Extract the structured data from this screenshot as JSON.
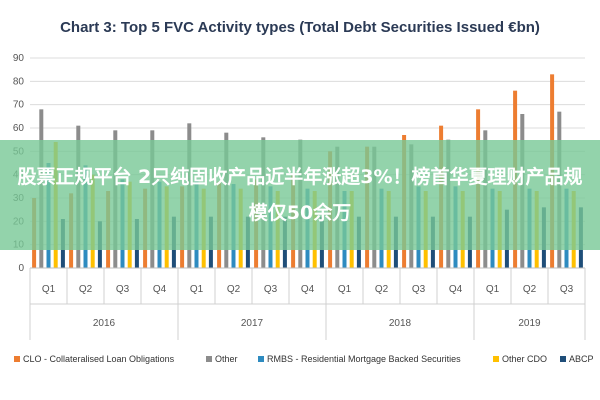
{
  "chart_data": {
    "type": "bar",
    "title": "Chart 3: Top 5 FVC Activity types (Total Debt Securities Issued €bn)",
    "ylim": [
      0,
      90
    ],
    "yticks": [
      0,
      10,
      20,
      30,
      40,
      50,
      60,
      70,
      80,
      90
    ],
    "grid": true,
    "legend_position": "bottom",
    "categories": [
      "Q1",
      "Q2",
      "Q3",
      "Q4",
      "Q1",
      "Q2",
      "Q3",
      "Q4",
      "Q1",
      "Q2",
      "Q3",
      "Q4",
      "Q1",
      "Q2",
      "Q3"
    ],
    "years": [
      {
        "label": "2016",
        "span": 4
      },
      {
        "label": "2017",
        "span": 4
      },
      {
        "label": "2018",
        "span": 4
      },
      {
        "label": "2019",
        "span": 3
      }
    ],
    "series": [
      {
        "name": "CLO - Collateralised Loan Obligations",
        "color": "#ed7d31",
        "values": [
          30,
          32,
          33,
          34,
          35,
          37,
          38,
          40,
          50,
          52,
          57,
          61,
          68,
          76,
          83
        ]
      },
      {
        "name": "Other",
        "color": "#8c8c8c",
        "values": [
          68,
          61,
          59,
          59,
          62,
          58,
          56,
          55,
          52,
          52,
          53,
          55,
          59,
          66,
          67
        ]
      },
      {
        "name": "RMBS - Residential Mortgage Backed Securities",
        "color": "#2e8bc0",
        "values": [
          45,
          44,
          38,
          37,
          38,
          36,
          35,
          34,
          33,
          34,
          35,
          35,
          34,
          34,
          34
        ]
      },
      {
        "name": "Other CDO",
        "color": "#ffc000",
        "values": [
          54,
          40,
          37,
          35,
          34,
          34,
          33,
          33,
          33,
          33,
          33,
          33,
          33,
          33,
          33
        ]
      },
      {
        "name": "ABCP",
        "color": "#1f4e79",
        "values": [
          21,
          20,
          21,
          22,
          22,
          22,
          22,
          22,
          22,
          22,
          22,
          22,
          25,
          26,
          26
        ]
      }
    ]
  },
  "overlay": {
    "headline": "股票正规平台 2只纯固收产品近半年涨超3%！榜首华夏理财产品规模仅50余万"
  }
}
